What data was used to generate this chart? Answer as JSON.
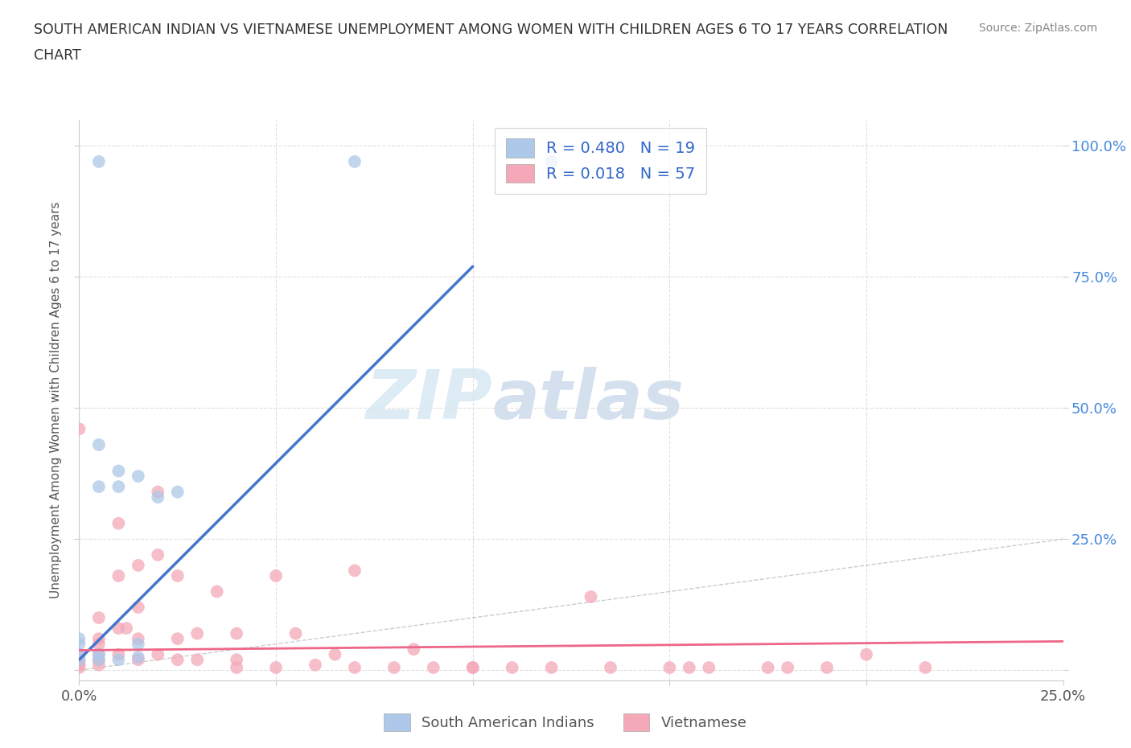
{
  "title_line1": "SOUTH AMERICAN INDIAN VS VIETNAMESE UNEMPLOYMENT AMONG WOMEN WITH CHILDREN AGES 6 TO 17 YEARS CORRELATION",
  "title_line2": "CHART",
  "source": "Source: ZipAtlas.com",
  "ylabel": "Unemployment Among Women with Children Ages 6 to 17 years",
  "xlim": [
    0.0,
    0.25
  ],
  "ylim": [
    -0.02,
    1.05
  ],
  "x_ticks": [
    0.0,
    0.05,
    0.1,
    0.15,
    0.2,
    0.25
  ],
  "x_tick_labels": [
    "0.0%",
    "",
    "",
    "",
    "",
    "25.0%"
  ],
  "y_ticks": [
    0.0,
    0.25,
    0.5,
    0.75,
    1.0
  ],
  "y_tick_labels_right": [
    "",
    "25.0%",
    "50.0%",
    "75.0%",
    "100.0%"
  ],
  "blue_color": "#adc8e8",
  "blue_line_color": "#4477cc",
  "pink_color": "#f4a8b8",
  "pink_line_color": "#ee6688",
  "R_blue": 0.48,
  "N_blue": 19,
  "R_pink": 0.018,
  "N_pink": 57,
  "legend_text_color": "#3366cc",
  "legend_labels": [
    "South American Indians",
    "Vietnamese"
  ],
  "blue_line_x0": 0.0,
  "blue_line_y0": 0.02,
  "blue_line_x1": 0.1,
  "blue_line_y1": 0.77,
  "pink_line_x0": 0.0,
  "pink_line_y0": 0.038,
  "pink_line_x1": 0.25,
  "pink_line_y1": 0.055,
  "blue_scatter_x": [
    0.005,
    0.07,
    0.12,
    0.005,
    0.01,
    0.015,
    0.02,
    0.025,
    0.005,
    0.01,
    0.015,
    0.005,
    0.0,
    0.0,
    0.0,
    0.005,
    0.01,
    0.0,
    0.015
  ],
  "blue_scatter_y": [
    0.97,
    0.97,
    0.97,
    0.43,
    0.38,
    0.37,
    0.33,
    0.34,
    0.35,
    0.35,
    0.05,
    0.03,
    0.05,
    0.02,
    0.03,
    0.02,
    0.02,
    0.06,
    0.025
  ],
  "pink_scatter_x": [
    0.0,
    0.0,
    0.0,
    0.0,
    0.0,
    0.0,
    0.005,
    0.005,
    0.005,
    0.005,
    0.005,
    0.005,
    0.01,
    0.01,
    0.01,
    0.01,
    0.012,
    0.015,
    0.015,
    0.015,
    0.015,
    0.02,
    0.02,
    0.02,
    0.025,
    0.025,
    0.025,
    0.03,
    0.03,
    0.035,
    0.04,
    0.04,
    0.04,
    0.05,
    0.05,
    0.055,
    0.06,
    0.065,
    0.07,
    0.07,
    0.08,
    0.085,
    0.09,
    0.1,
    0.1,
    0.11,
    0.12,
    0.13,
    0.135,
    0.15,
    0.155,
    0.16,
    0.175,
    0.18,
    0.19,
    0.2,
    0.215
  ],
  "pink_scatter_y": [
    0.46,
    0.03,
    0.02,
    0.015,
    0.01,
    0.005,
    0.1,
    0.06,
    0.05,
    0.03,
    0.02,
    0.01,
    0.28,
    0.18,
    0.08,
    0.03,
    0.08,
    0.2,
    0.12,
    0.06,
    0.02,
    0.34,
    0.22,
    0.03,
    0.18,
    0.06,
    0.02,
    0.07,
    0.02,
    0.15,
    0.07,
    0.02,
    0.005,
    0.18,
    0.005,
    0.07,
    0.01,
    0.03,
    0.19,
    0.005,
    0.005,
    0.04,
    0.005,
    0.005,
    0.005,
    0.005,
    0.005,
    0.14,
    0.005,
    0.005,
    0.005,
    0.005,
    0.005,
    0.005,
    0.005,
    0.03,
    0.005
  ],
  "watermark_zip": "ZIP",
  "watermark_atlas": "atlas",
  "background_color": "#ffffff",
  "grid_color": "#e0e0e0"
}
